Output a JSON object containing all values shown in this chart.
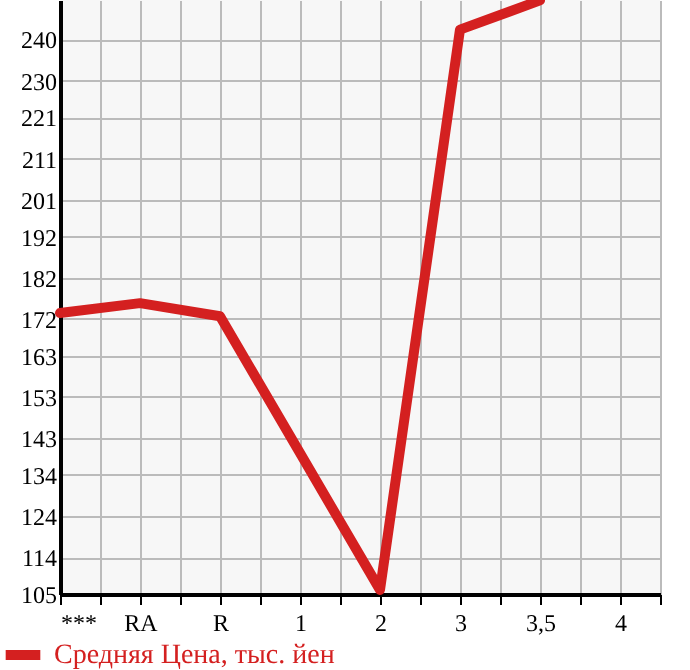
{
  "chart_data": {
    "type": "line",
    "categories": [
      "***",
      "RA",
      "R",
      "1",
      "2",
      "3",
      "3,5",
      "4"
    ],
    "series": [
      {
        "name": "Средняя Цена, тыс. йен",
        "color": "#d42020",
        "values": [
          173.4,
          175.8,
          172.6,
          139.3,
          106,
          242.4,
          249.5,
          null
        ]
      }
    ],
    "ylim": [
      105,
      249.6
    ],
    "yticks": [
      105,
      114,
      124,
      134,
      143,
      153,
      163,
      172,
      182,
      192,
      201,
      211,
      221,
      230,
      240
    ],
    "grid": true,
    "legend": "bottom left",
    "marker": "none",
    "line_style": "solid"
  }
}
